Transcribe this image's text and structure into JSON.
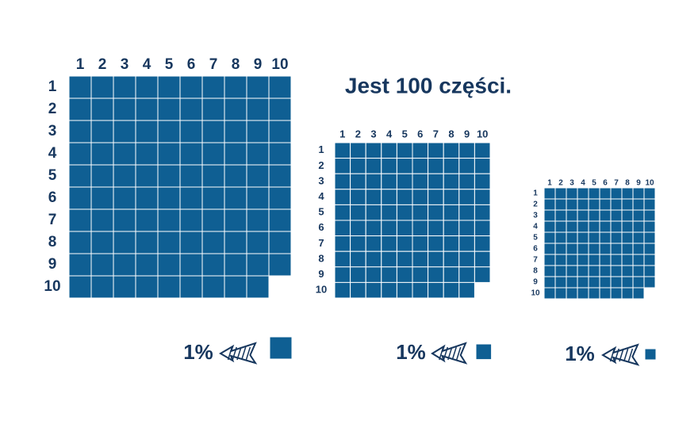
{
  "title": "Jest 100 części.",
  "grids": [
    {
      "columns": [
        1,
        2,
        3,
        4,
        5,
        6,
        7,
        8,
        9,
        10
      ],
      "rows": [
        1,
        2,
        3,
        4,
        5,
        6,
        7,
        8,
        9,
        10
      ],
      "percent_label": "1%"
    },
    {
      "columns": [
        1,
        2,
        3,
        4,
        5,
        6,
        7,
        8,
        9,
        10
      ],
      "rows": [
        1,
        2,
        3,
        4,
        5,
        6,
        7,
        8,
        9,
        10
      ],
      "percent_label": "1%"
    },
    {
      "columns": [
        1,
        2,
        3,
        4,
        5,
        6,
        7,
        8,
        9,
        10
      ],
      "rows": [
        1,
        2,
        3,
        4,
        5,
        6,
        7,
        8,
        9,
        10
      ],
      "percent_label": "1%"
    }
  ]
}
